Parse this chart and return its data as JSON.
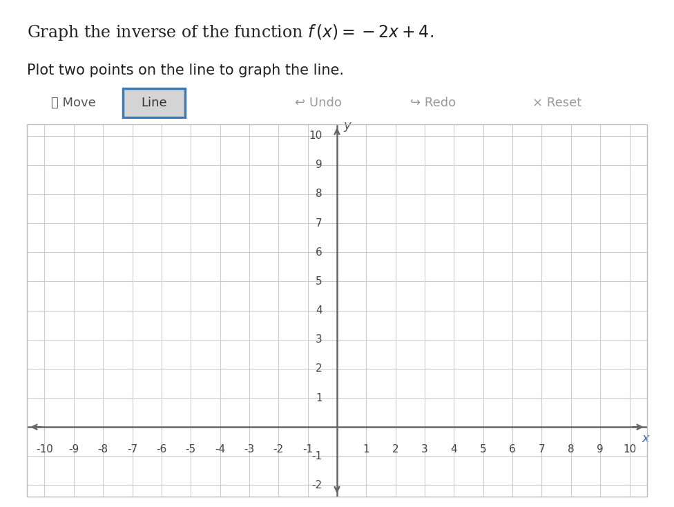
{
  "subtitle": "Plot two points on the line to graph the line.",
  "toolbar_bg": "#e8e8e8",
  "graph_border_bg": "#f0f0f0",
  "grid_bg": "#ffffff",
  "grid_color": "#cccccc",
  "axis_color": "#666666",
  "xmin": -10,
  "xmax": 10,
  "ymin": -2,
  "ymax": 10,
  "xticks": [
    -10,
    -9,
    -8,
    -7,
    -6,
    -5,
    -4,
    -3,
    -2,
    -1,
    0,
    1,
    2,
    3,
    4,
    5,
    6,
    7,
    8,
    9,
    10
  ],
  "yticks": [
    -2,
    -1,
    0,
    1,
    2,
    3,
    4,
    5,
    6,
    7,
    8,
    9,
    10
  ],
  "xlabel": "x",
  "ylabel": "y",
  "line_selected_color": "#3a7abf",
  "line_selected_bg": "#d4d4d4",
  "tick_fontsize": 11,
  "label_fontsize": 13
}
